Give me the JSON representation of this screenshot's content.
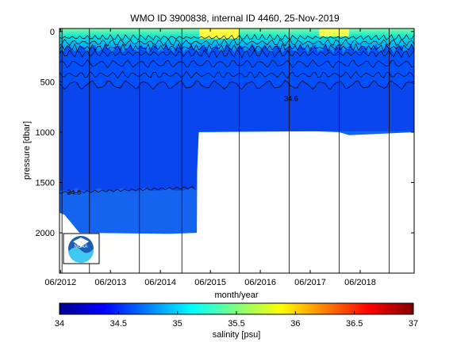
{
  "chart_data": {
    "type": "heatmap",
    "title": "WMO ID 3900838, internal ID 4460, 25-Nov-2019",
    "xlabel": "month/year",
    "ylabel": "pressure [dbar]",
    "x_ticks": [
      "06/2012",
      "06/2013",
      "06/2014",
      "06/2015",
      "06/2016",
      "06/2017",
      "06/2018"
    ],
    "y_ticks": [
      0,
      500,
      1000,
      1500,
      2000
    ],
    "ylim": [
      2400,
      -30
    ],
    "x_range_years": [
      2012.4,
      2019.5
    ],
    "colorbar": {
      "label": "salinity [psu]",
      "min": 34,
      "max": 37,
      "ticks": [
        "34",
        "34.5",
        "35",
        "35.5",
        "36",
        "36.5",
        "37"
      ]
    },
    "profile_depth": [
      {
        "x": 2012.4,
        "max_pressure": 1800
      },
      {
        "x": 2012.5,
        "max_pressure": 1820
      },
      {
        "x": 2012.8,
        "max_pressure": 2000
      },
      {
        "x": 2014.6,
        "max_pressure": 2010
      },
      {
        "x": 2015.15,
        "max_pressure": 2000
      },
      {
        "x": 2015.16,
        "max_pressure": 1000
      },
      {
        "x": 2017.5,
        "max_pressure": 990
      },
      {
        "x": 2018.0,
        "max_pressure": 1000
      },
      {
        "x": 2018.2,
        "max_pressure": 1030
      },
      {
        "x": 2019.5,
        "max_pressure": 1000
      }
    ],
    "contour_labels": [
      "34.6",
      "34.6"
    ],
    "logo": "noaa-logo"
  }
}
